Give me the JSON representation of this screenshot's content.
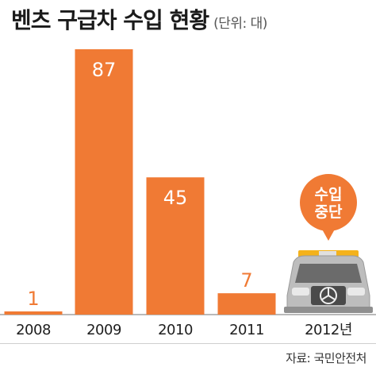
{
  "header": {
    "title": "벤츠 구급차 수입 현황",
    "unit": "(단위: 대)"
  },
  "colors": {
    "bar": "#f07a34",
    "badge": "#f07a34",
    "axis": "#b9b9b9",
    "text": "#1e1e1e",
    "value_text": "#ffffff"
  },
  "chart_data": {
    "type": "bar",
    "categories": [
      "2008",
      "2009",
      "2010",
      "2011",
      "2012년"
    ],
    "values": [
      1,
      87,
      45,
      7,
      null
    ],
    "ylim": [
      0,
      87
    ],
    "grid": false,
    "annotations": [
      {
        "category": "2012년",
        "text_lines": [
          "수입",
          "중단"
        ]
      }
    ],
    "illustration": "ambulance-van-icon"
  },
  "footer": {
    "source": "자료: 국민안전처"
  }
}
